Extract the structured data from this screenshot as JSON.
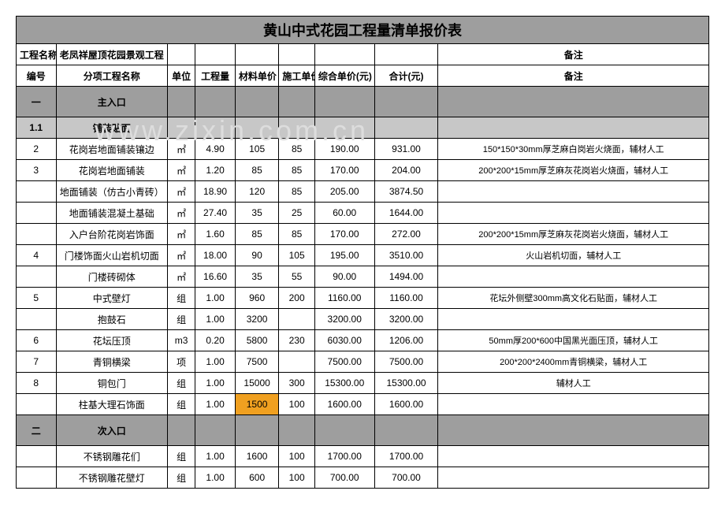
{
  "title": "黄山中式花园工程量清单报价表",
  "header1": {
    "c1": "工程名称",
    "c2": "老凤祥屋顶花园景观工程",
    "remark": "备注"
  },
  "header2": {
    "c1": "编号",
    "c2": "分项工程名称",
    "c3": "单位",
    "c4": "工程量",
    "c5": "材料单价",
    "c6": "施工单价",
    "c7": "综合单价(元)",
    "c8": "合计(元)",
    "c9": "备注"
  },
  "sections": [
    {
      "type": "section",
      "no": "一",
      "name": "主入口"
    },
    {
      "type": "subsection",
      "no": "1.1",
      "name": "铺装贴面"
    },
    {
      "type": "row",
      "no": "2",
      "name": "花岗岩地面铺装镶边",
      "unit": "㎡",
      "qty": "4.90",
      "mat": "105",
      "lab": "85",
      "unitprice": "190.00",
      "total": "931.00",
      "note": "150*150*30mm厚芝麻白岗岩火烧面，辅材人工"
    },
    {
      "type": "row",
      "no": "3",
      "name": "花岗岩地面铺装",
      "unit": "㎡",
      "qty": "1.20",
      "mat": "85",
      "lab": "85",
      "unitprice": "170.00",
      "total": "204.00",
      "note": "200*200*15mm厚芝麻灰花岗岩火烧面，辅材人工"
    },
    {
      "type": "row",
      "no": "",
      "name": "地面铺装（仿古小青砖）",
      "unit": "㎡",
      "qty": "18.90",
      "mat": "120",
      "lab": "85",
      "unitprice": "205.00",
      "total": "3874.50",
      "note": ""
    },
    {
      "type": "row",
      "no": "",
      "name": "地面铺装混凝土基础",
      "unit": "㎡",
      "qty": "27.40",
      "mat": "35",
      "lab": "25",
      "unitprice": "60.00",
      "total": "1644.00",
      "note": ""
    },
    {
      "type": "row",
      "no": "",
      "name": "入户台阶花岗岩饰面",
      "unit": "㎡",
      "qty": "1.60",
      "mat": "85",
      "lab": "85",
      "unitprice": "170.00",
      "total": "272.00",
      "note": "200*200*15mm厚芝麻灰花岗岩火烧面，辅材人工"
    },
    {
      "type": "row",
      "no": "4",
      "name": "门楼饰面火山岩机切面",
      "unit": "㎡",
      "qty": "18.00",
      "mat": "90",
      "lab": "105",
      "unitprice": "195.00",
      "total": "3510.00",
      "note": "火山岩机切面，辅材人工"
    },
    {
      "type": "row",
      "no": "",
      "name": "门楼砖砌体",
      "unit": "㎡",
      "qty": "16.60",
      "mat": "35",
      "lab": "55",
      "unitprice": "90.00",
      "total": "1494.00",
      "note": ""
    },
    {
      "type": "row",
      "no": "5",
      "name": "中式壁灯",
      "unit": "组",
      "qty": "1.00",
      "mat": "960",
      "lab": "200",
      "unitprice": "1160.00",
      "total": "1160.00",
      "note": "花坛外侧壁300mm高文化石贴面，辅材人工"
    },
    {
      "type": "row",
      "no": "",
      "name": "抱鼓石",
      "unit": "组",
      "qty": "1.00",
      "mat": "3200",
      "lab": "",
      "unitprice": "3200.00",
      "total": "3200.00",
      "note": ""
    },
    {
      "type": "row",
      "no": "6",
      "name": "花坛压顶",
      "unit": "m3",
      "qty": "0.20",
      "mat": "5800",
      "lab": "230",
      "unitprice": "6030.00",
      "total": "1206.00",
      "note": "50mm厚200*600中国黑光面压顶，辅材人工"
    },
    {
      "type": "row",
      "no": "7",
      "name": "青铜横梁",
      "unit": "项",
      "qty": "1.00",
      "mat": "7500",
      "lab": "",
      "unitprice": "7500.00",
      "total": "7500.00",
      "note": "200*200*2400mm青铜横梁，辅材人工"
    },
    {
      "type": "row",
      "no": "8",
      "name": "铜包门",
      "unit": "组",
      "qty": "1.00",
      "mat": "15000",
      "lab": "300",
      "unitprice": "15300.00",
      "total": "15300.00",
      "note": "辅材人工"
    },
    {
      "type": "row",
      "no": "",
      "name": "柱基大理石饰面",
      "unit": "组",
      "qty": "1.00",
      "mat": "1500",
      "mathl": true,
      "lab": "100",
      "unitprice": "1600.00",
      "total": "1600.00",
      "note": ""
    },
    {
      "type": "section",
      "no": "二",
      "name": "次入口"
    },
    {
      "type": "row",
      "no": "",
      "name": "不锈钢雕花们",
      "unit": "组",
      "qty": "1.00",
      "mat": "1600",
      "lab": "100",
      "unitprice": "1700.00",
      "total": "1700.00",
      "note": ""
    },
    {
      "type": "row",
      "no": "",
      "name": "不锈钢雕花壁灯",
      "unit": "组",
      "qty": "1.00",
      "mat": "600",
      "lab": "100",
      "unitprice": "700.00",
      "total": "700.00",
      "note": ""
    }
  ]
}
